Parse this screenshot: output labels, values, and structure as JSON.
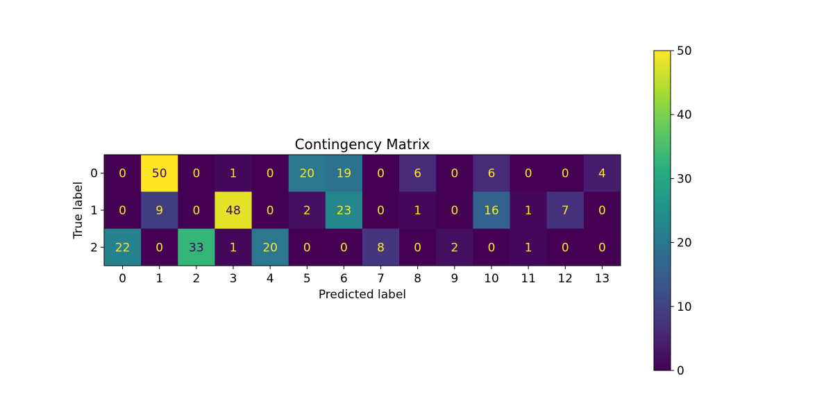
{
  "chart_data": {
    "type": "heatmap",
    "title": "Contingency Matrix",
    "xlabel": "Predicted label",
    "ylabel": "True label",
    "x_categories": [
      "0",
      "1",
      "2",
      "3",
      "4",
      "5",
      "6",
      "7",
      "8",
      "9",
      "10",
      "11",
      "12",
      "13"
    ],
    "y_categories": [
      "0",
      "1",
      "2"
    ],
    "values": [
      [
        0,
        50,
        0,
        1,
        0,
        20,
        19,
        0,
        6,
        0,
        6,
        0,
        0,
        4
      ],
      [
        0,
        9,
        0,
        48,
        0,
        2,
        23,
        0,
        1,
        0,
        16,
        1,
        7,
        0
      ],
      [
        22,
        0,
        33,
        1,
        20,
        0,
        0,
        8,
        0,
        2,
        0,
        1,
        0,
        0
      ]
    ],
    "colormap": "viridis",
    "colorbar": {
      "range": [
        0,
        50
      ],
      "ticks": [
        0,
        10,
        20,
        30,
        40,
        50
      ]
    },
    "annotation_colors": {
      "on_dark": "#fde725",
      "on_light": "#440154"
    },
    "grid": false,
    "legend": "colorbar-right"
  }
}
